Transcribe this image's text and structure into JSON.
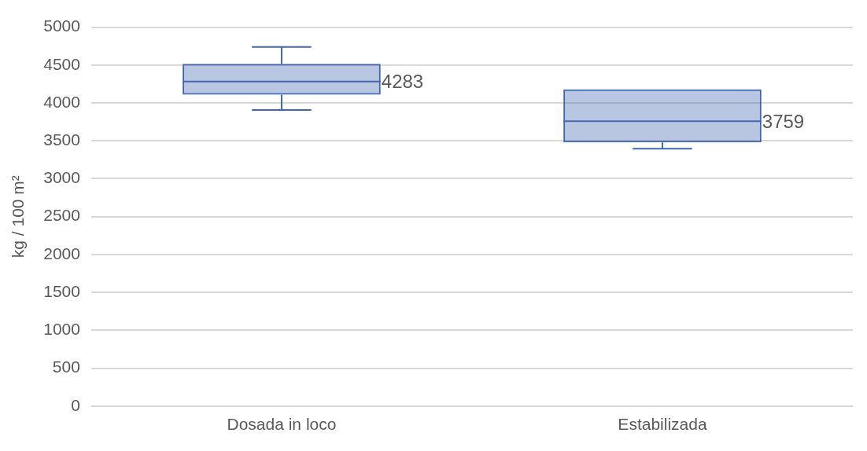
{
  "chart_data": {
    "type": "box",
    "ylabel": "kg / 100 m²",
    "categories": [
      "Dosada in loco",
      "Estabilizada"
    ],
    "boxes": [
      {
        "low": 3906,
        "q1": 4110,
        "median": 4283,
        "q3": 4517,
        "high": 4740
      },
      {
        "low": 3396,
        "q1": 3480,
        "median": 3759,
        "q3": 4180,
        "high": 4180
      }
    ],
    "color": "#4267b2",
    "value_labels": [
      "4283",
      "3759"
    ],
    "ylim": [
      0,
      5000
    ],
    "yticks": [
      0,
      500,
      1000,
      1500,
      2000,
      2500,
      3000,
      3500,
      4000,
      4500,
      5000
    ],
    "grid": "y",
    "legend": false
  }
}
